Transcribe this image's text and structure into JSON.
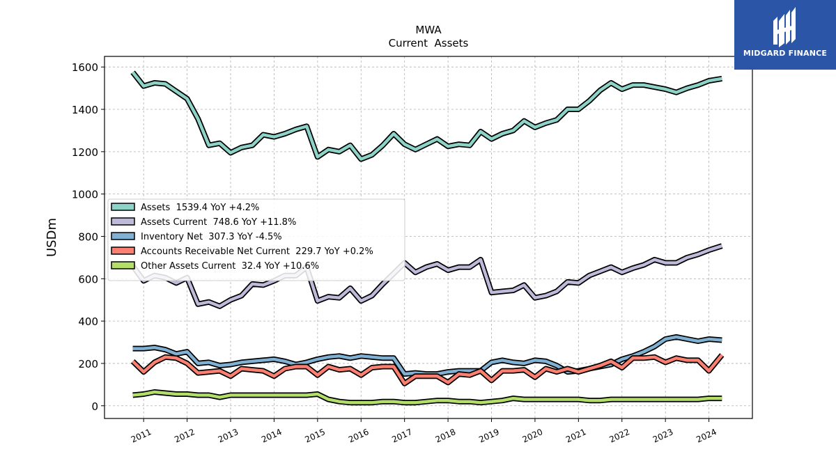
{
  "brand": {
    "name": "MIDGARD FINANCE",
    "bg_color": "#2b56a8"
  },
  "chart_data": {
    "type": "line",
    "title": "MWA",
    "subtitle": "Current  Assets",
    "xlabel": "",
    "ylabel": "USDm",
    "xlim": [
      2010.1,
      2025.0
    ],
    "ylim": [
      -60,
      1650
    ],
    "x_ticks": [
      "2011",
      "2012",
      "2013",
      "2014",
      "2015",
      "2016",
      "2017",
      "2018",
      "2019",
      "2020",
      "2021",
      "2022",
      "2023",
      "2024"
    ],
    "y_ticks": [
      0,
      200,
      400,
      600,
      800,
      1000,
      1200,
      1400,
      1600
    ],
    "grid": true,
    "legend_position": "center-left",
    "x": [
      2010.75,
      2011.0,
      2011.25,
      2011.5,
      2011.75,
      2012.0,
      2012.25,
      2012.5,
      2012.75,
      2013.0,
      2013.25,
      2013.5,
      2013.75,
      2014.0,
      2014.25,
      2014.5,
      2014.75,
      2015.0,
      2015.25,
      2015.5,
      2015.75,
      2016.0,
      2016.25,
      2016.5,
      2016.75,
      2017.0,
      2017.25,
      2017.5,
      2017.75,
      2018.0,
      2018.25,
      2018.5,
      2018.75,
      2019.0,
      2019.25,
      2019.5,
      2019.75,
      2020.0,
      2020.25,
      2020.5,
      2020.75,
      2021.0,
      2021.25,
      2021.5,
      2021.75,
      2022.0,
      2022.25,
      2022.5,
      2022.75,
      2023.0,
      2023.25,
      2023.5,
      2023.75,
      2024.0,
      2024.3
    ],
    "series": [
      {
        "name": "Assets",
        "legend": "Assets  1539.4 YoY +4.2%",
        "color": "#8dd3c7",
        "values": [
          1575,
          1510,
          1525,
          1520,
          1485,
          1450,
          1355,
          1230,
          1240,
          1195,
          1220,
          1230,
          1280,
          1270,
          1285,
          1305,
          1320,
          1175,
          1210,
          1200,
          1230,
          1165,
          1185,
          1230,
          1285,
          1235,
          1210,
          1235,
          1260,
          1225,
          1235,
          1230,
          1295,
          1260,
          1285,
          1300,
          1345,
          1315,
          1335,
          1350,
          1400,
          1400,
          1440,
          1490,
          1525,
          1495,
          1515,
          1515,
          1505,
          1495,
          1480,
          1500,
          1515,
          1535,
          1545
        ]
      },
      {
        "name": "Assets Current",
        "legend": "Assets Current  748.6 YoY +11.8%",
        "color": "#bebada",
        "values": [
          660,
          590,
          615,
          605,
          580,
          605,
          480,
          490,
          470,
          500,
          520,
          575,
          570,
          590,
          615,
          615,
          655,
          495,
          515,
          510,
          555,
          495,
          520,
          575,
          625,
          675,
          630,
          655,
          670,
          640,
          655,
          655,
          690,
          535,
          540,
          545,
          570,
          510,
          520,
          540,
          585,
          580,
          615,
          635,
          655,
          630,
          650,
          665,
          690,
          675,
          675,
          700,
          715,
          735,
          755
        ]
      },
      {
        "name": "Inventory Net",
        "legend": "Inventory Net  307.3 YoY -4.5%",
        "color": "#80b1d3",
        "values": [
          270,
          270,
          275,
          265,
          245,
          255,
          200,
          205,
          190,
          195,
          205,
          210,
          215,
          220,
          210,
          195,
          205,
          220,
          230,
          235,
          225,
          235,
          230,
          225,
          225,
          150,
          155,
          150,
          150,
          160,
          165,
          165,
          165,
          205,
          215,
          205,
          200,
          215,
          210,
          190,
          160,
          165,
          175,
          185,
          195,
          220,
          235,
          255,
          280,
          315,
          325,
          315,
          305,
          315,
          310
        ]
      },
      {
        "name": "Accounts Receivable Net Current",
        "legend": "Accounts Receivable Net Current  229.7 YoY +0.2%",
        "color": "#fb8072",
        "values": [
          210,
          160,
          205,
          230,
          225,
          200,
          155,
          160,
          165,
          140,
          175,
          170,
          165,
          140,
          175,
          185,
          185,
          145,
          185,
          170,
          175,
          145,
          180,
          185,
          185,
          105,
          140,
          140,
          140,
          110,
          150,
          145,
          165,
          120,
          165,
          165,
          170,
          135,
          175,
          160,
          175,
          160,
          175,
          190,
          210,
          180,
          225,
          225,
          230,
          205,
          225,
          215,
          215,
          165,
          240
        ]
      },
      {
        "name": "Other Assets Current",
        "legend": "Other Assets Current  32.4 YoY +10.6%",
        "color": "#b3de69",
        "values": [
          50,
          55,
          65,
          60,
          55,
          55,
          50,
          50,
          40,
          50,
          50,
          50,
          50,
          50,
          50,
          50,
          50,
          55,
          30,
          20,
          15,
          15,
          15,
          20,
          20,
          15,
          15,
          20,
          25,
          25,
          20,
          20,
          15,
          20,
          25,
          35,
          30,
          30,
          30,
          30,
          30,
          30,
          25,
          25,
          30,
          30,
          30,
          30,
          30,
          30,
          30,
          30,
          30,
          35,
          35
        ]
      }
    ]
  }
}
